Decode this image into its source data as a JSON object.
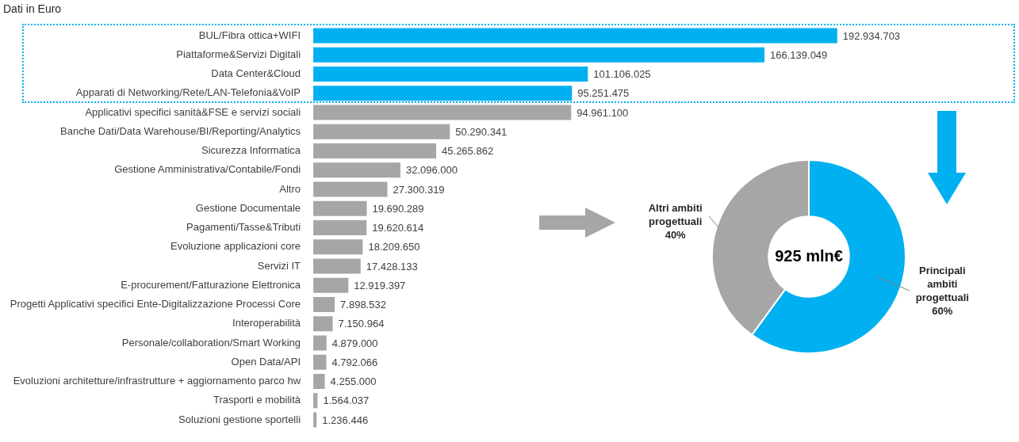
{
  "chart_data": [
    {
      "type": "bar",
      "title": "Dati in Euro",
      "orientation": "horizontal",
      "categories": [
        "BUL/Fibra ottica+WIFI",
        "Piattaforme&Servizi Digitali",
        "Data Center&Cloud",
        "Apparati di Networking/Rete/LAN-Telefonia&VoIP",
        "Applicativi specifici sanità&FSE e servizi sociali",
        "Banche Dati/Data Warehouse/BI/Reporting/Analytics",
        "Sicurezza Informatica",
        "Gestione Amministrativa/Contabile/Fondi",
        "Altro",
        "Gestione Documentale",
        "Pagamenti/Tasse&Tributi",
        "Evoluzione applicazioni core",
        "Servizi IT",
        "E-procurement/Fatturazione Elettronica",
        "Progetti Applicativi specifici Ente-Digitalizzazione Processi Core",
        "Interoperabilità",
        "Personale/collaboration/Smart Working",
        "Open Data/API",
        "Evoluzioni architetture/infrastrutture + aggiornamento parco hw",
        "Trasporti e mobilità",
        "Soluzioni gestione sportelli"
      ],
      "values": [
        192934703,
        166139049,
        101106025,
        95251475,
        94961100,
        50290341,
        45265862,
        32096000,
        27300319,
        19690289,
        19620614,
        18209650,
        17428133,
        12919397,
        7898532,
        7150964,
        4879000,
        4792066,
        4255000,
        1564037,
        1236446
      ],
      "colors": [
        "#00b0f0",
        "#00b0f0",
        "#00b0f0",
        "#00b0f0",
        "#a6a6a6",
        "#a6a6a6",
        "#a6a6a6",
        "#a6a6a6",
        "#a6a6a6",
        "#a6a6a6",
        "#a6a6a6",
        "#a6a6a6",
        "#a6a6a6",
        "#a6a6a6",
        "#a6a6a6",
        "#a6a6a6",
        "#a6a6a6",
        "#a6a6a6",
        "#a6a6a6",
        "#a6a6a6",
        "#a6a6a6"
      ],
      "value_labels": [
        "192.934.703",
        "166.139.049",
        "101.106.025",
        "95.251.475",
        "94.961.100",
        "50.290.341",
        "45.265.862",
        "32.096.000",
        "27.300.319",
        "19.690.289",
        "19.620.614",
        "18.209.650",
        "17.428.133",
        "12.919.397",
        "7.898.532",
        "7.150.964",
        "4.879.000",
        "4.792.066",
        "4.255.000",
        "1.564.037",
        "1.236.446"
      ]
    },
    {
      "type": "donut",
      "categories": [
        "Principali ambiti progettuali",
        "Altri ambiti progettuali"
      ],
      "values": [
        60,
        40
      ],
      "colors": [
        "#00b0f0",
        "#a6a6a6"
      ],
      "value_labels": [
        "60%",
        "40%"
      ],
      "annotations": [
        "925 mln€"
      ]
    }
  ]
}
